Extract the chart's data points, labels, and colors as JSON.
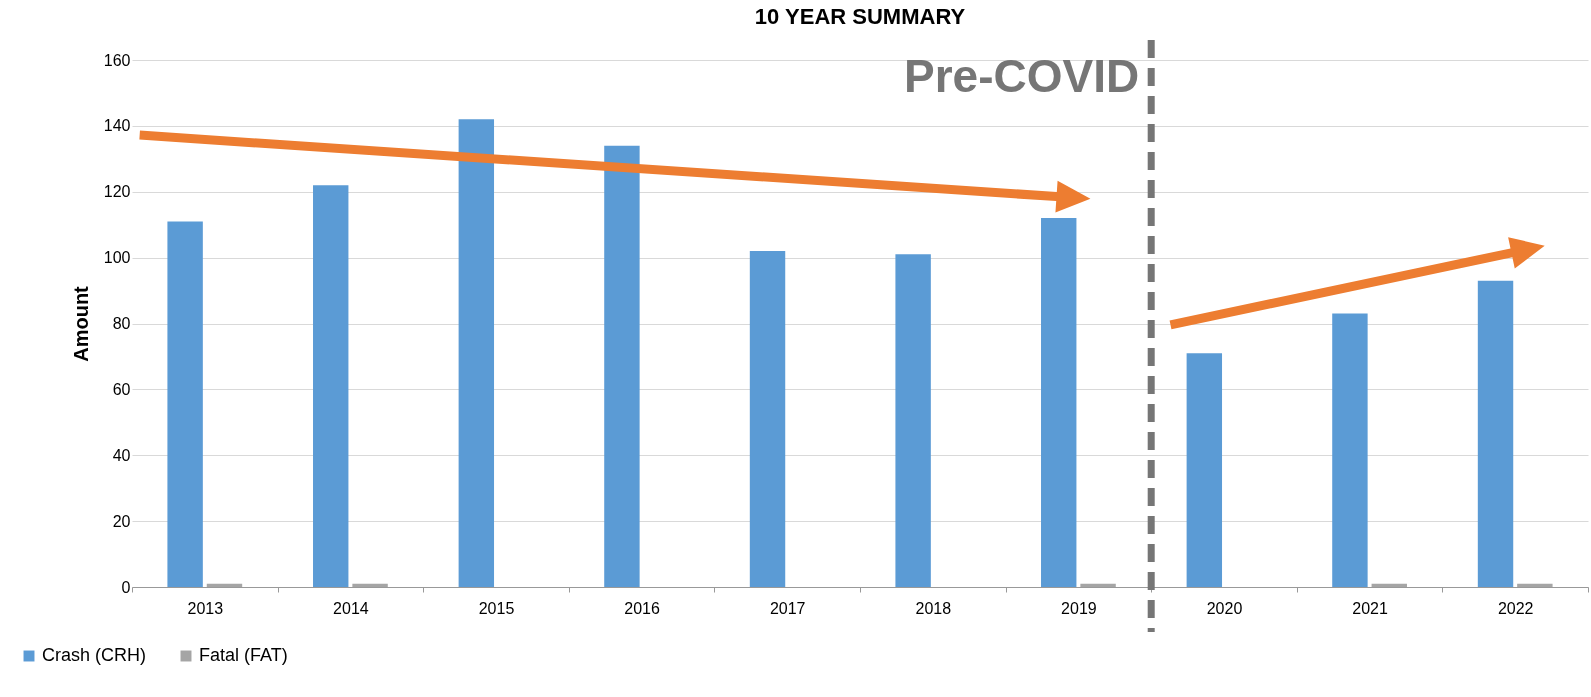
{
  "chart_data": {
    "type": "bar",
    "title": "10 YEAR SUMMARY",
    "ylabel": "Amount",
    "categories": [
      "2013",
      "2014",
      "2015",
      "2016",
      "2017",
      "2018",
      "2019",
      "2020",
      "2021",
      "2022"
    ],
    "series": [
      {
        "name": "Crash (CRH)",
        "color": "#5b9bd5",
        "values": [
          111,
          122,
          142,
          134,
          102,
          101,
          112,
          71,
          83,
          93
        ]
      },
      {
        "name": "Fatal (FAT)",
        "color": "#a5a5a5",
        "values": [
          1,
          1,
          0,
          0,
          0,
          0,
          1,
          0,
          1,
          1
        ]
      }
    ],
    "ylim": [
      0,
      160
    ],
    "yticks": [
      0,
      20,
      40,
      60,
      80,
      100,
      120,
      140,
      160
    ],
    "grid": "y",
    "legend": "bottom left",
    "ref_lines": [
      {
        "axis": "x",
        "value": "2019",
        "label": "Pre-COVID",
        "color": "#767676",
        "line_style": "dashed"
      }
    ]
  }
}
